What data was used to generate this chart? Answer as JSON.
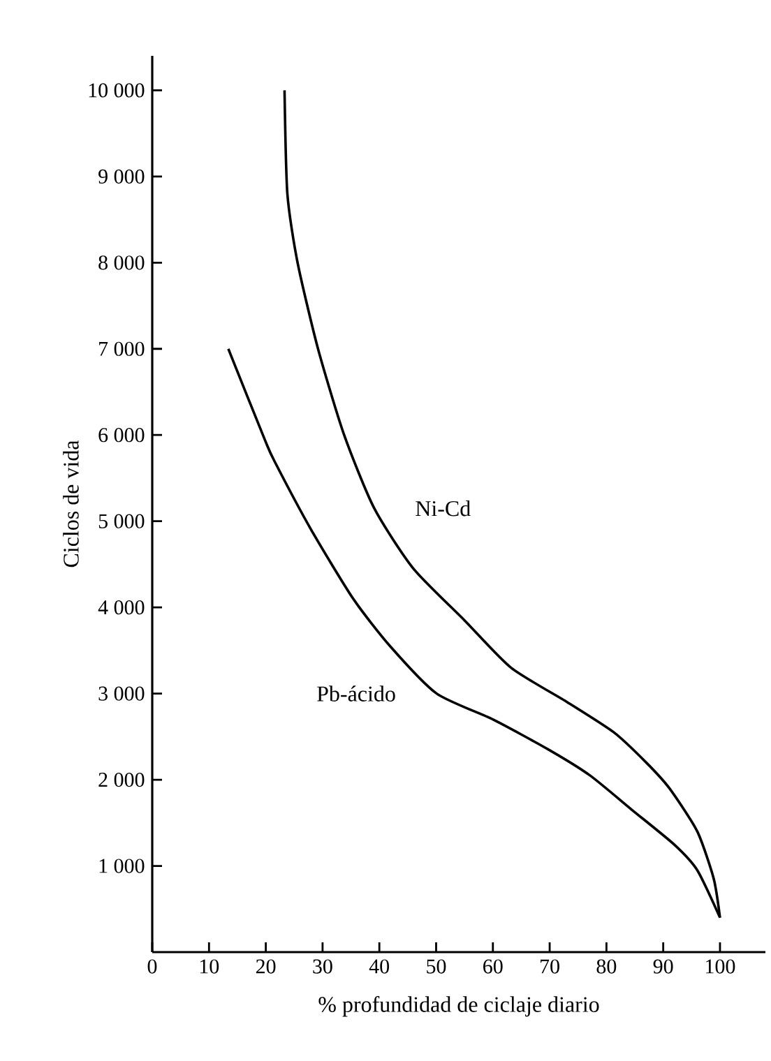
{
  "chart_data": {
    "type": "line",
    "xlabel": "% profundidad de ciclaje diario",
    "ylabel": "Ciclos de vida",
    "x": [
      23.3,
      23.8,
      25.6,
      29.2,
      33.8,
      39.1,
      46.0,
      55.0,
      63.2,
      73.1,
      81.3,
      87.0,
      91.1,
      96.0,
      98.9,
      100
    ],
    "series": [
      {
        "name": "Ni-Cd",
        "color": "#000000",
        "values": [
          10000,
          8800,
          8000,
          7000,
          6000,
          5150,
          4450,
          3850,
          3300,
          2900,
          2550,
          2200,
          1900,
          1400,
          850,
          400
        ]
      },
      {
        "name": "Pb-ácido",
        "color": "#000000",
        "x": [
          13.4,
          19.8,
          21.5,
          28.0,
          35.4,
          41.9,
          50.1,
          60.0,
          69.8,
          77.1,
          84.5,
          91.9,
          96.0,
          100
        ],
        "values": [
          7000,
          5950,
          5700,
          4900,
          4100,
          3550,
          3000,
          2700,
          2350,
          2050,
          1650,
          1250,
          950,
          400
        ]
      }
    ],
    "xlim": [
      0,
      108
    ],
    "ylim": [
      0,
      10400
    ],
    "xticks": [
      0,
      10,
      20,
      30,
      40,
      50,
      60,
      70,
      80,
      90,
      100
    ],
    "yticks": [
      {
        "value": 1000,
        "label": "1 000"
      },
      {
        "value": 2000,
        "label": "2 000"
      },
      {
        "value": 3000,
        "label": "3 000"
      },
      {
        "value": 4000,
        "label": "4 000"
      },
      {
        "value": 5000,
        "label": "5 000"
      },
      {
        "value": 6000,
        "label": "6 000"
      },
      {
        "value": 7000,
        "label": "7 000"
      },
      {
        "value": 8000,
        "label": "8 000"
      },
      {
        "value": 9000,
        "label": "9 000"
      },
      {
        "value": 10000,
        "label": "10 000"
      }
    ],
    "grid": false,
    "legend": false,
    "marker": "none",
    "line_style": "solid"
  }
}
